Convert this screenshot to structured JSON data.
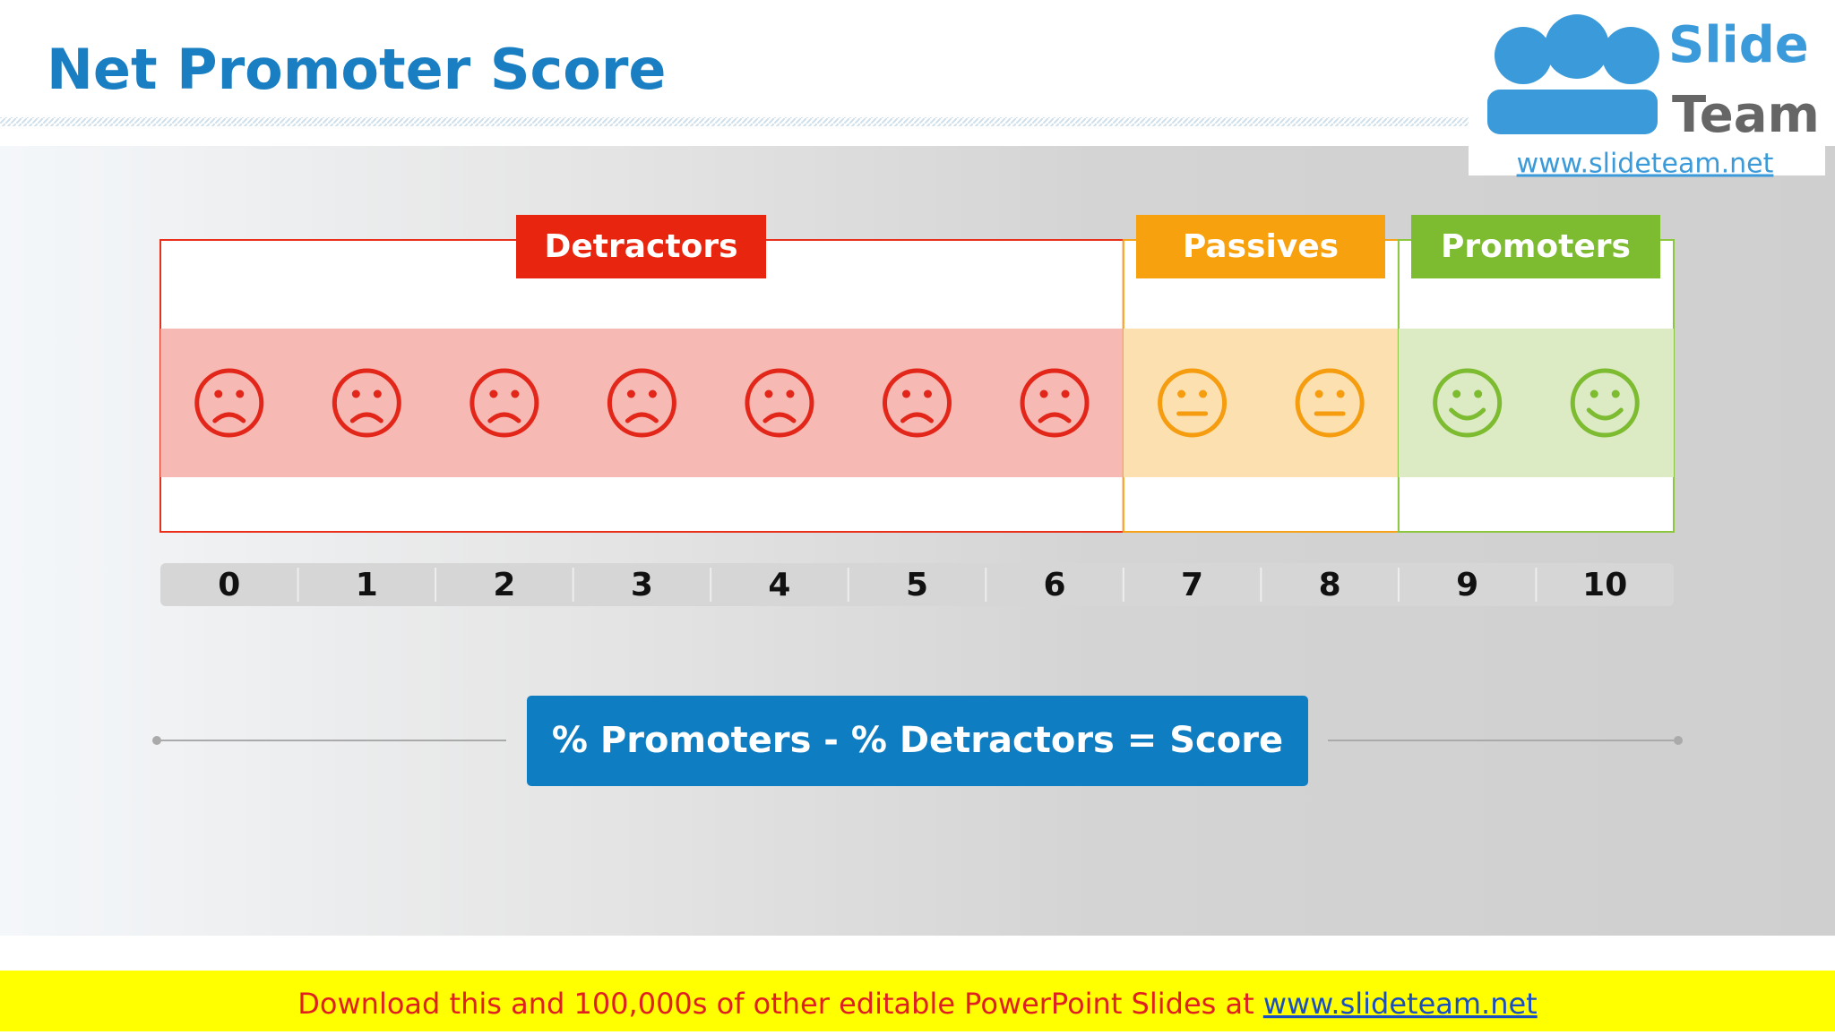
{
  "header": {
    "title": "Net Promoter Score"
  },
  "logo": {
    "line1": "Slide",
    "line2": "Team",
    "url": "www.slideteam.net"
  },
  "groups": [
    {
      "label": "Detractors"
    },
    {
      "label": "Passives"
    },
    {
      "label": "Promoters"
    }
  ],
  "scale": [
    0,
    1,
    2,
    3,
    4,
    5,
    6,
    7,
    8,
    9,
    10
  ],
  "formula": "% Promoters - % Detractors = Score",
  "footer": {
    "text": "Download this and 100,000s of other editable PowerPoint Slides at ",
    "link": "www.slideteam.net"
  }
}
